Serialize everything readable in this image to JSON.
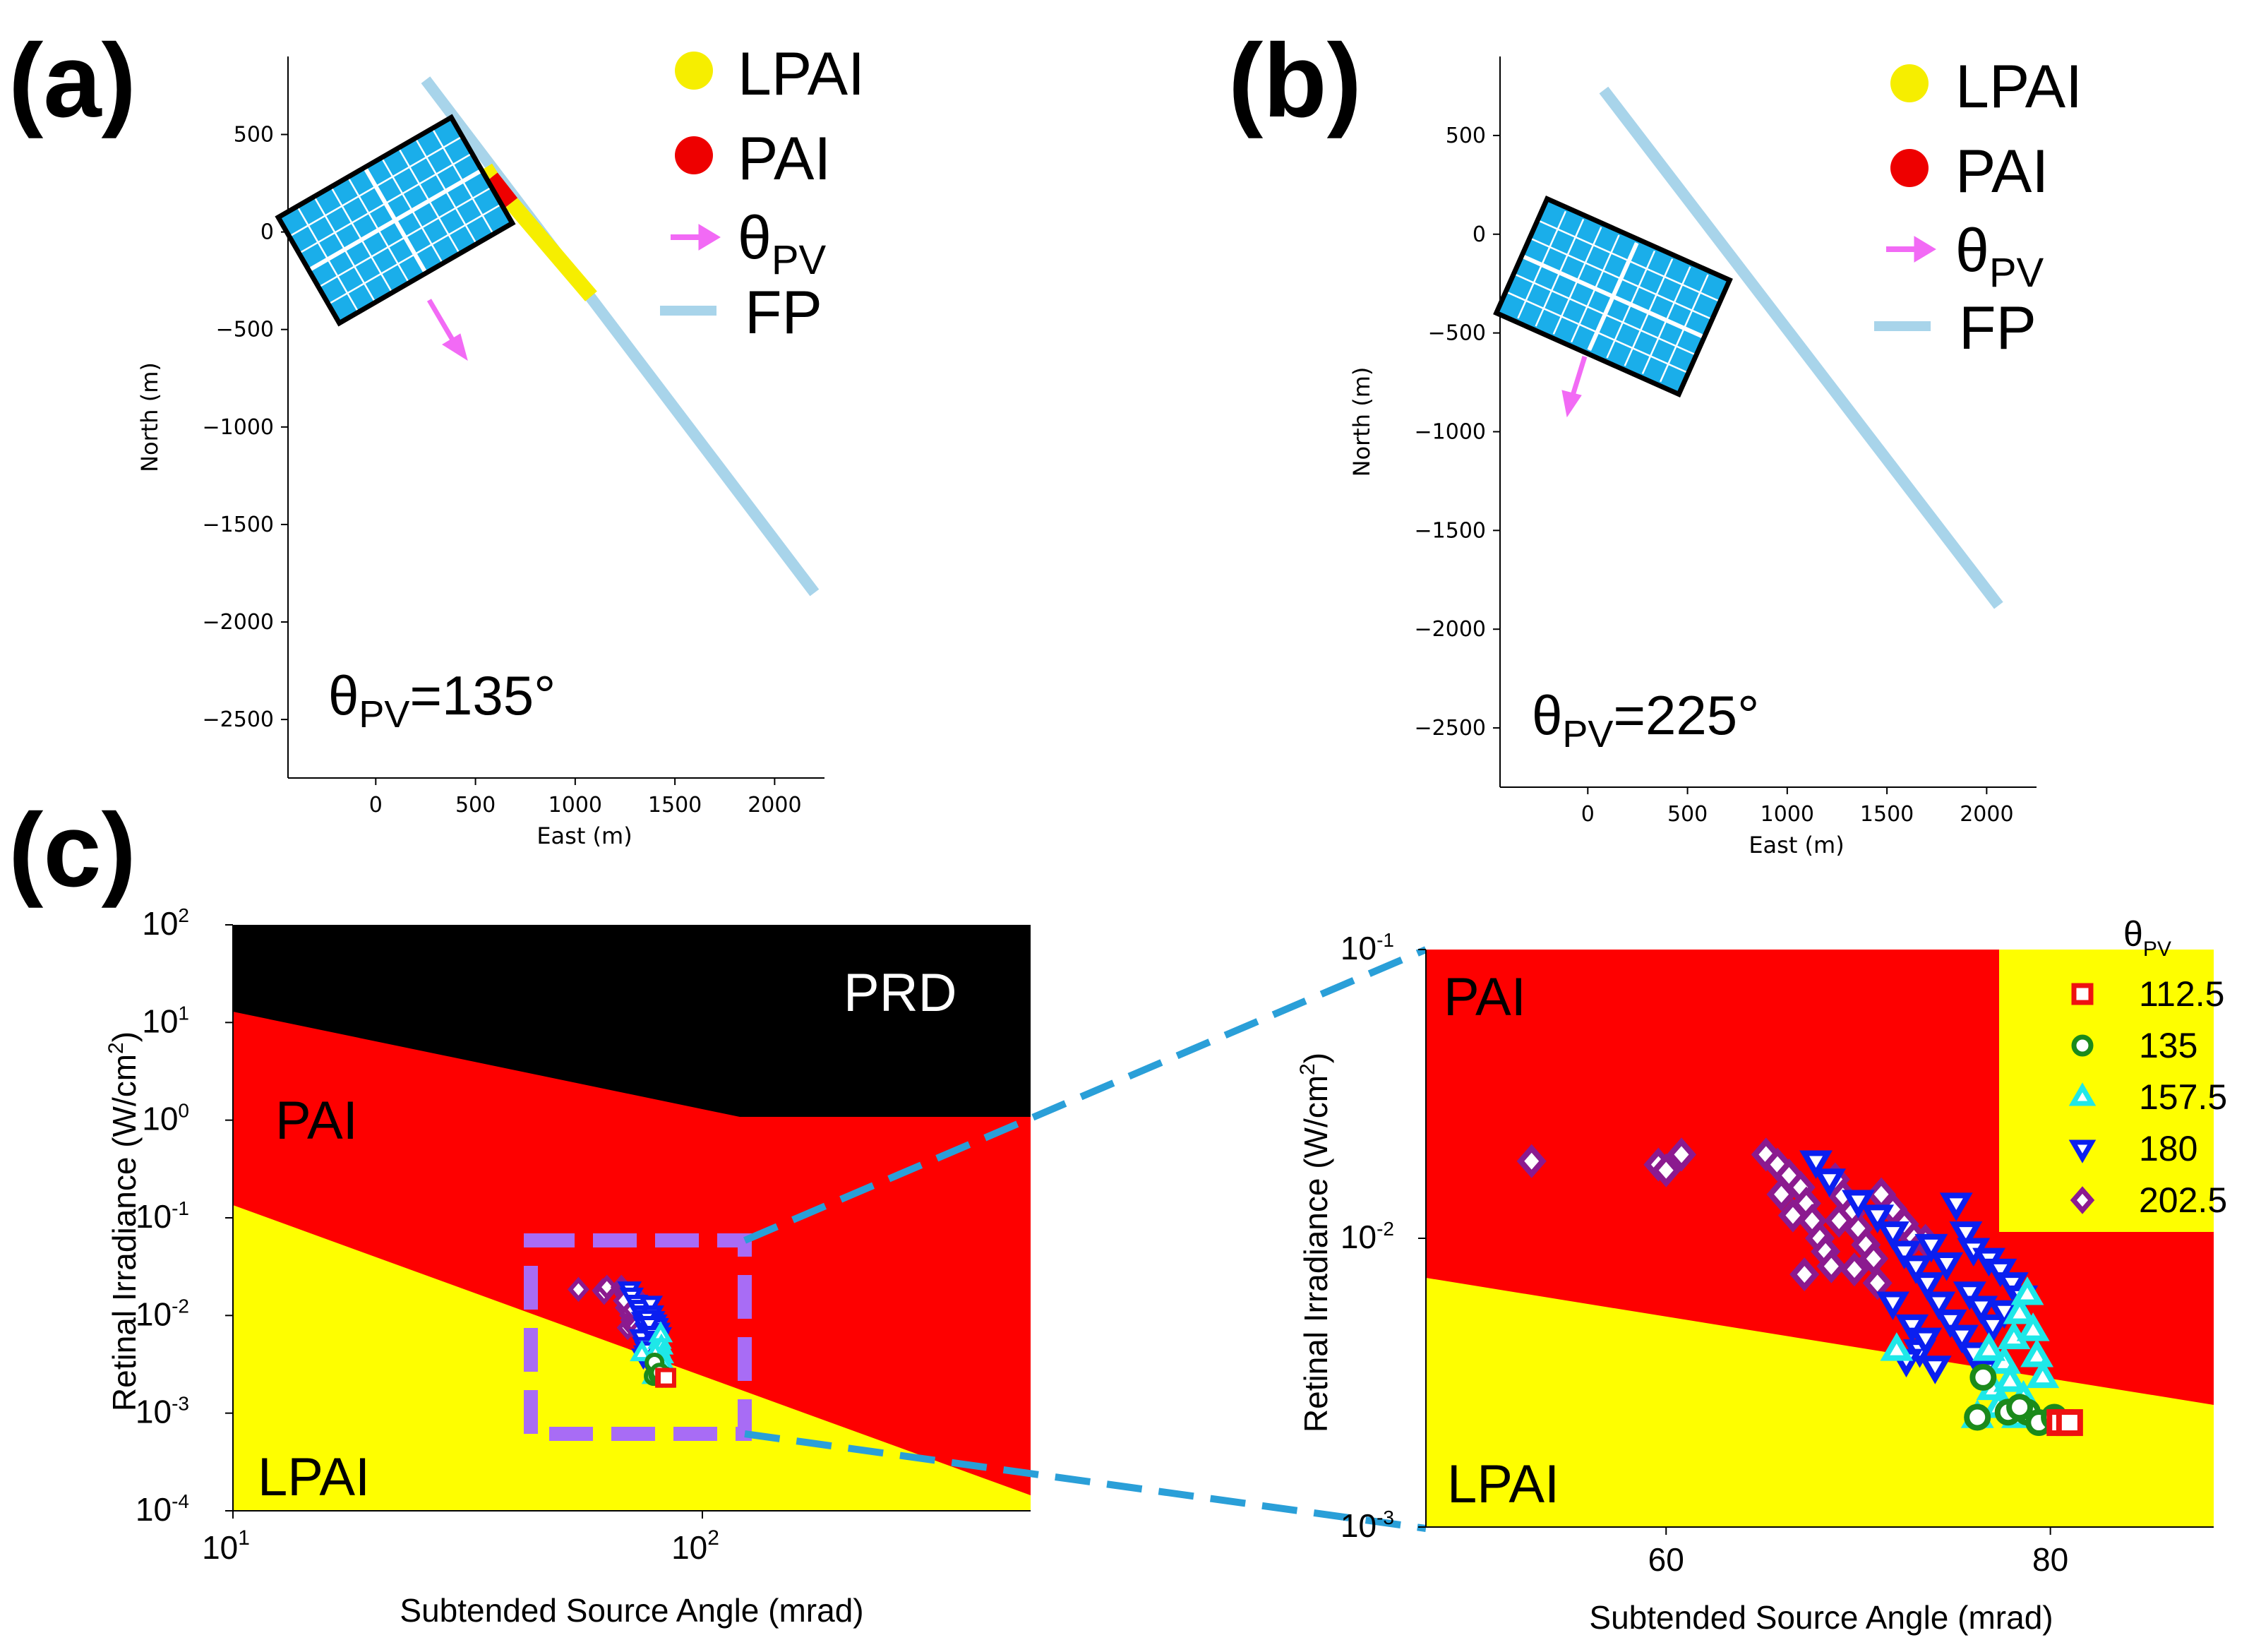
{
  "chart_data": [
    {
      "panel": "(a)",
      "type": "map-plot",
      "xlabel": "East (m)",
      "ylabel": "North (m)",
      "xlim": [
        -440,
        2250
      ],
      "ylim": [
        -2800,
        900
      ],
      "xticks": [
        "0",
        "500",
        "1000",
        "1500",
        "2000"
      ],
      "yticks": [
        "500",
        "0",
        "−500",
        "−1000",
        "−1500",
        "−2000",
        "−2500"
      ],
      "flight_path": {
        "x": [
          250,
          2200
        ],
        "y": [
          780,
          -1850
        ]
      },
      "pai_segment": {
        "x": [
          580,
          680
        ],
        "y": [
          280,
          150
        ]
      },
      "lpai_segments": [
        {
          "x": [
            550,
            580
          ],
          "y": [
            330,
            280
          ]
        },
        {
          "x": [
            680,
            1080
          ],
          "y": [
            150,
            -330
          ]
        }
      ],
      "angle_label": {
        "prefix": "θ",
        "sub": "PV",
        "value": "=135°"
      },
      "legend": [
        {
          "label": "LPAI",
          "color": "#f6ee00"
        },
        {
          "label": "PAI",
          "color": "#ee0000"
        },
        {
          "label": "θ",
          "sub": "PV",
          "color": "#f26af5"
        },
        {
          "label": "FP",
          "color": "#a8d4ea"
        }
      ]
    },
    {
      "panel": "(b)",
      "type": "map-plot",
      "xlabel": "East (m)",
      "ylabel": "North (m)",
      "xlim": [
        -440,
        2250
      ],
      "ylim": [
        -2800,
        900
      ],
      "xticks": [
        "0",
        "500",
        "1000",
        "1500",
        "2000"
      ],
      "yticks": [
        "500",
        "0",
        "−500",
        "−1000",
        "−1500",
        "−2000",
        "−2500"
      ],
      "flight_path": {
        "x": [
          80,
          2060
        ],
        "y": [
          730,
          -1880
        ]
      },
      "angle_label": {
        "prefix": "θ",
        "sub": "PV",
        "value": "=225°"
      },
      "legend": [
        {
          "label": "LPAI",
          "color": "#f6ee00"
        },
        {
          "label": "PAI",
          "color": "#ee0000"
        },
        {
          "label": "θ",
          "sub": "PV",
          "color": "#f26af5"
        },
        {
          "label": "FP",
          "color": "#a8d4ea"
        }
      ]
    },
    {
      "panel": "(c)",
      "type": "scatter",
      "xscale": "log",
      "yscale": "log",
      "xlabel": "Subtended Source Angle (mrad)",
      "ylabel": "Retinal Irradiance (W/cm²)",
      "xlim": [
        10,
        470
      ],
      "ylim": [
        0.0001,
        100
      ],
      "xtick_labels": [
        "10",
        "1",
        "10",
        "2"
      ],
      "ytick_labels": [
        {
          "base": "10",
          "exp": "2"
        },
        {
          "base": "10",
          "exp": "1"
        },
        {
          "base": "10",
          "exp": "0"
        },
        {
          "base": "10",
          "exp": "-1"
        },
        {
          "base": "10",
          "exp": "-2"
        },
        {
          "base": "10",
          "exp": "-3"
        },
        {
          "base": "10",
          "exp": "-4"
        }
      ],
      "regions": [
        "PRD",
        "PAI",
        "LPAI"
      ],
      "cluster_x_range": [
        52,
        82
      ],
      "cluster_y_range": [
        0.0022,
        0.02
      ],
      "zoom_box": {
        "x": [
          43,
          117
        ],
        "y": [
          0.0008,
          0.055
        ]
      }
    },
    {
      "panel": "(c) zoom",
      "type": "scatter",
      "xscale": "linear",
      "yscale": "log",
      "xlabel": "Subtended Source Angle (mrad)",
      "ylabel": "Retinal Irradiance (W/cm²)",
      "xlim": [
        47.5,
        88.5
      ],
      "ylim": [
        0.001,
        0.1
      ],
      "xticks": [
        "60",
        "80"
      ],
      "ytick_labels": [
        {
          "base": "10",
          "exp": "-1"
        },
        {
          "base": "10",
          "exp": "-2"
        },
        {
          "base": "10",
          "exp": "-3"
        }
      ],
      "regions": [
        "PAI",
        "LPAI"
      ],
      "legend_title": {
        "prefix": "θ",
        "sub": "PV"
      },
      "series": [
        {
          "name": "112.5",
          "marker": "square",
          "color": "#ee1111",
          "points": [
            [
              80.5,
              0.0023
            ],
            [
              81.0,
              0.0023
            ]
          ]
        },
        {
          "name": "135",
          "marker": "circle",
          "color": "#1b8a1b",
          "points": [
            [
              76.2,
              0.0024
            ],
            [
              77.8,
              0.0025
            ],
            [
              78.8,
              0.0025
            ],
            [
              79.4,
              0.0023
            ],
            [
              80.2,
              0.0024
            ],
            [
              80.8,
              0.0023
            ],
            [
              76.5,
              0.0033
            ],
            [
              78.4,
              0.0026
            ]
          ]
        },
        {
          "name": "157.5",
          "marker": "triangle-up",
          "color": "#1ee8e8",
          "points": [
            [
              72.0,
              0.0041
            ],
            [
              76.2,
              0.0024
            ],
            [
              77.0,
              0.003
            ],
            [
              77.6,
              0.0037
            ],
            [
              78.1,
              0.0045
            ],
            [
              78.4,
              0.0055
            ],
            [
              78.8,
              0.0064
            ],
            [
              79.1,
              0.0048
            ],
            [
              79.3,
              0.0039
            ],
            [
              77.3,
              0.0026
            ],
            [
              78.6,
              0.0028
            ],
            [
              79.6,
              0.0033
            ],
            [
              76.8,
              0.0041
            ],
            [
              77.9,
              0.0032
            ],
            [
              78.3,
              0.0024
            ]
          ]
        },
        {
          "name": "180",
          "marker": "triangle-down",
          "color": "#0a1ff0",
          "points": [
            [
              67.8,
              0.0185
            ],
            [
              68.5,
              0.016
            ],
            [
              70.0,
              0.0135
            ],
            [
              71.0,
              0.012
            ],
            [
              71.8,
              0.0105
            ],
            [
              72.4,
              0.009
            ],
            [
              73.0,
              0.008
            ],
            [
              73.6,
              0.007
            ],
            [
              74.2,
              0.006
            ],
            [
              74.8,
              0.0052
            ],
            [
              75.4,
              0.0046
            ],
            [
              76.0,
              0.004
            ],
            [
              76.6,
              0.0035
            ],
            [
              75.1,
              0.0132
            ],
            [
              75.6,
              0.0105
            ],
            [
              76.0,
              0.0092
            ],
            [
              76.8,
              0.0085
            ],
            [
              77.4,
              0.0078
            ],
            [
              78.0,
              0.007
            ],
            [
              78.5,
              0.0063
            ],
            [
              73.2,
              0.0041
            ],
            [
              74.0,
              0.0036
            ],
            [
              72.5,
              0.0038
            ],
            [
              71.8,
              0.006
            ],
            [
              73.8,
              0.0095
            ],
            [
              74.6,
              0.0082
            ],
            [
              75.8,
              0.0065
            ],
            [
              76.4,
              0.0058
            ],
            [
              77.0,
              0.005
            ],
            [
              77.6,
              0.0056
            ],
            [
              72.8,
              0.005
            ],
            [
              73.5,
              0.0045
            ]
          ]
        },
        {
          "name": "202.5",
          "marker": "diamond",
          "color": "#8b1a8f",
          "points": [
            [
              53.0,
              0.0185
            ],
            [
              59.6,
              0.018
            ],
            [
              60.0,
              0.0172
            ],
            [
              60.8,
              0.0195
            ],
            [
              65.2,
              0.0195
            ],
            [
              65.8,
              0.018
            ],
            [
              66.4,
              0.0165
            ],
            [
              67.0,
              0.015
            ],
            [
              67.3,
              0.0132
            ],
            [
              67.6,
              0.0115
            ],
            [
              68.0,
              0.01
            ],
            [
              68.3,
              0.009
            ],
            [
              68.8,
              0.016
            ],
            [
              69.2,
              0.014
            ],
            [
              69.6,
              0.0122
            ],
            [
              70.0,
              0.0108
            ],
            [
              70.4,
              0.0095
            ],
            [
              70.8,
              0.0085
            ],
            [
              71.2,
              0.0142
            ],
            [
              71.8,
              0.0126
            ],
            [
              72.4,
              0.0112
            ],
            [
              72.9,
              0.01
            ],
            [
              66.6,
              0.012
            ],
            [
              67.2,
              0.0075
            ],
            [
              68.6,
              0.008
            ],
            [
              69.8,
              0.0078
            ],
            [
              71.0,
              0.007
            ],
            [
              73.5,
              0.0098
            ],
            [
              66.0,
              0.0142
            ],
            [
              69.0,
              0.0115
            ]
          ]
        }
      ]
    }
  ],
  "colors": {
    "pai": "#fe0000",
    "lpai": "#fefe00",
    "prd": "#000000",
    "flight_path": "#a8d4ea",
    "arrow": "#f26af5",
    "panel": "#1aaeea",
    "zoom_box": "#a86cf5",
    "zoom_lines": "#2a9fd8"
  }
}
